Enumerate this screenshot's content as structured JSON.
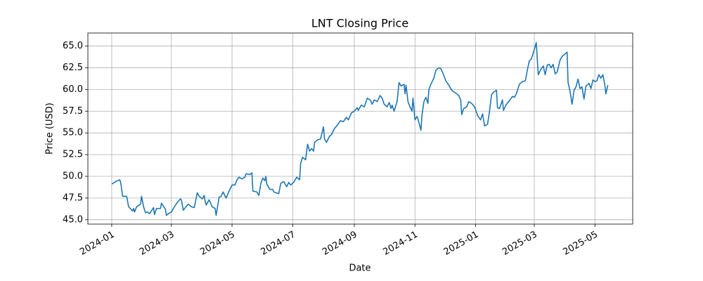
{
  "chart_data": {
    "type": "line",
    "title": "LNT Closing Price",
    "x_label": "Date",
    "y_label": "Price (USD)",
    "color": "#1f77b4",
    "grid": true,
    "xlim": [
      -24,
      524
    ],
    "xticks": [
      {
        "value": 0,
        "label": "2024-01"
      },
      {
        "value": 60,
        "label": "2024-03"
      },
      {
        "value": 121,
        "label": "2024-05"
      },
      {
        "value": 182,
        "label": "2024-07"
      },
      {
        "value": 244,
        "label": "2024-09"
      },
      {
        "value": 305,
        "label": "2024-11"
      },
      {
        "value": 366,
        "label": "2025-01"
      },
      {
        "value": 425,
        "label": "2025-03"
      },
      {
        "value": 486,
        "label": "2025-05"
      }
    ],
    "ylim": [
      44.5,
      66.5
    ],
    "yticks": [
      {
        "value": 45,
        "label": "45.0"
      },
      47.5,
      {
        "value": 50,
        "label": "50.0"
      },
      52.5,
      {
        "value": 55,
        "label": "55.0"
      },
      57.5,
      {
        "value": 60,
        "label": "60.0"
      },
      62.5,
      {
        "value": 65,
        "label": "65.0"
      }
    ],
    "x": [
      0,
      4,
      8,
      9,
      11,
      15,
      17,
      21,
      22,
      23,
      25,
      29,
      30,
      32,
      34,
      36,
      38,
      42,
      43,
      45,
      49,
      50,
      54,
      55,
      57,
      60,
      63,
      66,
      69,
      70,
      72,
      74,
      77,
      80,
      83,
      86,
      88,
      91,
      93,
      94,
      95,
      98,
      101,
      104,
      105,
      108,
      110,
      112,
      115,
      118,
      121,
      124,
      126,
      128,
      131,
      134,
      135,
      139,
      141,
      142,
      146,
      148,
      150,
      152,
      154,
      155,
      156,
      159,
      162,
      163,
      168,
      170,
      173,
      176,
      178,
      180,
      183,
      186,
      189,
      190,
      192,
      195,
      197,
      199,
      201,
      203,
      204,
      207,
      210,
      213,
      214,
      216,
      219,
      221,
      224,
      227,
      230,
      233,
      236,
      238,
      241,
      244,
      247,
      248,
      251,
      254,
      257,
      260,
      262,
      264,
      267,
      270,
      272,
      274,
      277,
      279,
      281,
      282,
      284,
      287,
      289,
      291,
      294,
      295,
      296,
      298,
      300,
      302,
      303,
      305,
      307,
      308,
      311,
      312,
      314,
      316,
      318,
      319,
      321,
      324,
      326,
      329,
      331,
      333,
      336,
      339,
      341,
      343,
      346,
      349,
      351,
      352,
      354,
      357,
      359,
      362,
      365,
      368,
      371,
      373,
      375,
      378,
      380,
      382,
      384,
      387,
      388,
      390,
      393,
      394,
      397,
      400,
      403,
      405,
      407,
      410,
      413,
      416,
      418,
      420,
      422,
      425,
      427,
      429,
      432,
      434,
      436,
      438,
      440,
      442,
      444,
      446,
      448,
      451,
      453,
      456,
      458,
      459,
      461,
      463,
      465,
      467,
      469,
      471,
      473,
      475,
      477,
      480,
      482,
      484,
      486,
      488,
      490,
      492,
      494,
      496,
      497,
      499
    ],
    "values": [
      49.1,
      49.4,
      49.6,
      49.3,
      47.7,
      47.7,
      46.5,
      46.0,
      46.3,
      45.9,
      46.5,
      46.8,
      47.7,
      46.5,
      45.8,
      45.9,
      45.7,
      46.4,
      45.6,
      46.3,
      46.3,
      46.9,
      46.2,
      45.5,
      45.7,
      45.9,
      46.5,
      47.0,
      47.4,
      47.3,
      46.1,
      46.4,
      46.8,
      46.5,
      46.4,
      48.1,
      47.7,
      47.4,
      47.8,
      47.1,
      46.7,
      47.3,
      46.5,
      46.3,
      45.5,
      47.6,
      47.7,
      48.2,
      47.5,
      48.3,
      49.0,
      49.0,
      49.6,
      49.9,
      49.7,
      49.9,
      50.3,
      50.2,
      50.4,
      48.3,
      48.2,
      47.8,
      49.2,
      49.8,
      49.5,
      50.0,
      49.1,
      48.5,
      48.5,
      48.2,
      48.0,
      49.2,
      49.4,
      48.8,
      49.3,
      49.0,
      49.3,
      49.9,
      49.6,
      51.5,
      52.2,
      51.9,
      53.7,
      52.9,
      53.2,
      52.9,
      53.9,
      54.2,
      54.3,
      55.7,
      54.3,
      53.9,
      54.6,
      54.8,
      55.5,
      55.9,
      56.4,
      56.3,
      56.8,
      56.5,
      57.3,
      57.5,
      57.9,
      57.6,
      58.2,
      58.0,
      59.0,
      58.8,
      58.3,
      58.8,
      58.6,
      59.3,
      59.0,
      58.3,
      58.0,
      58.5,
      57.8,
      58.2,
      57.5,
      58.6,
      60.8,
      60.4,
      60.6,
      59.5,
      60.5,
      58.6,
      58.0,
      57.5,
      59.0,
      56.5,
      56.9,
      56.6,
      55.3,
      57.0,
      58.6,
      59.1,
      58.4,
      60.0,
      60.6,
      61.3,
      62.2,
      62.5,
      62.4,
      61.9,
      61.0,
      60.5,
      60.1,
      59.8,
      59.6,
      59.3,
      58.8,
      57.1,
      57.8,
      58.0,
      58.6,
      58.4,
      58.0,
      57.0,
      56.5,
      57.2,
      55.8,
      56.0,
      57.5,
      59.4,
      59.7,
      59.9,
      57.9,
      57.8,
      58.8,
      57.6,
      58.3,
      58.7,
      59.2,
      59.1,
      59.5,
      60.6,
      60.9,
      61.0,
      62.2,
      63.3,
      63.5,
      64.6,
      65.4,
      61.7,
      62.4,
      62.7,
      61.7,
      62.8,
      62.9,
      62.5,
      62.9,
      61.8,
      62.0,
      63.4,
      63.8,
      64.1,
      64.3,
      60.8,
      59.8,
      58.3,
      59.9,
      60.3,
      61.2,
      60.1,
      60.3,
      58.9,
      60.4,
      60.7,
      60.1,
      61.1,
      60.9,
      61.0,
      61.7,
      61.3,
      61.7,
      60.5,
      59.5,
      60.5
    ]
  }
}
